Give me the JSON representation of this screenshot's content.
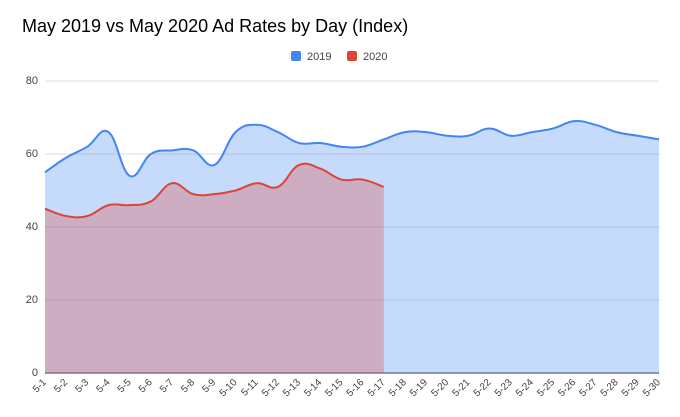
{
  "chart_data": {
    "type": "area",
    "title": "May 2019 vs May 2020 Ad Rates by Day (Index)",
    "categories": [
      "5-1",
      "5-2",
      "5-3",
      "5-4",
      "5-5",
      "5-6",
      "5-7",
      "5-8",
      "5-9",
      "5-10",
      "5-11",
      "5-12",
      "5-13",
      "5-14",
      "5-15",
      "5-16",
      "5-17",
      "5-18",
      "5-19",
      "5-20",
      "5-21",
      "5-22",
      "5-23",
      "5-24",
      "5-25",
      "5-26",
      "5-27",
      "5-28",
      "5-29",
      "5-30"
    ],
    "series": [
      {
        "name": "2019",
        "color": "#4285f4",
        "values": [
          55,
          59,
          62,
          66,
          54,
          60,
          61,
          61,
          57,
          66,
          68,
          66,
          63,
          63,
          62,
          62,
          64,
          66,
          66,
          65,
          65,
          67,
          65,
          66,
          67,
          69,
          68,
          66,
          65,
          64
        ]
      },
      {
        "name": "2020",
        "color": "#db4437",
        "values": [
          45,
          43,
          43,
          46,
          46,
          47,
          52,
          49,
          49,
          50,
          52,
          51,
          57,
          56,
          53,
          53,
          51,
          null,
          null,
          null,
          null,
          null,
          null,
          null,
          null,
          null,
          null,
          null,
          null,
          null
        ]
      }
    ],
    "ylim": [
      0,
      80
    ],
    "yticks": [
      0,
      20,
      40,
      60,
      80
    ],
    "grid": true,
    "legend": "top"
  }
}
